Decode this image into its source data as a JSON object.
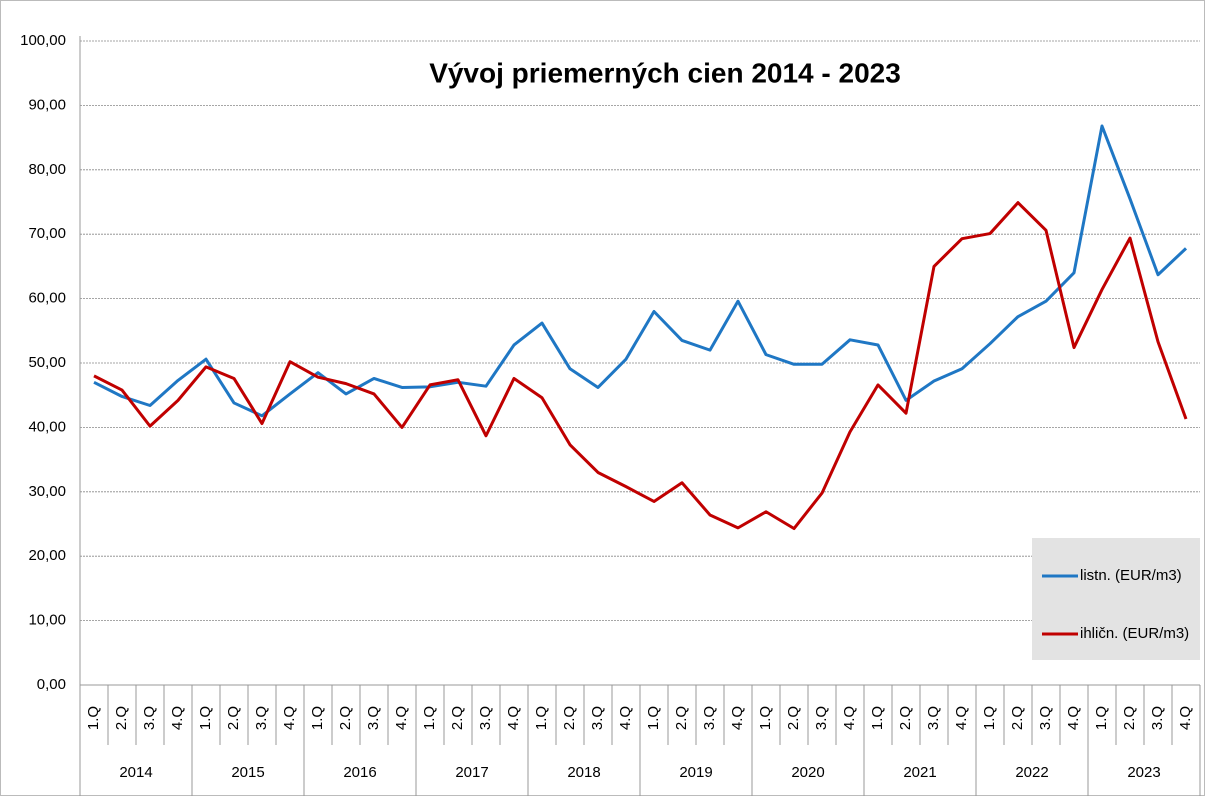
{
  "chart_data": {
    "type": "line",
    "title": "Vývoj priemerných cien 2014 - 2023",
    "categories": [
      "1.Q",
      "2.Q",
      "3.Q",
      "4.Q",
      "1.Q",
      "2.Q",
      "3.Q",
      "4.Q",
      "1.Q",
      "2.Q",
      "3.Q",
      "4.Q",
      "1.Q",
      "2.Q",
      "3.Q",
      "4.Q",
      "1.Q",
      "2.Q",
      "3.Q",
      "4.Q",
      "1.Q",
      "2.Q",
      "3.Q",
      "4.Q",
      "1.Q",
      "2.Q",
      "3.Q",
      "4.Q",
      "1.Q",
      "2.Q",
      "3.Q",
      "4.Q",
      "1.Q",
      "2.Q",
      "3.Q",
      "4.Q",
      "1.Q",
      "2.Q",
      "3.Q",
      "4.Q"
    ],
    "years": [
      "2014",
      "2015",
      "2016",
      "2017",
      "2018",
      "2019",
      "2020",
      "2021",
      "2022",
      "2023"
    ],
    "series": [
      {
        "name": "listn. (EUR/m3)",
        "color": "#1f77c4",
        "values": [
          47.0,
          44.8,
          43.4,
          47.3,
          50.6,
          43.8,
          41.8,
          45.2,
          48.5,
          45.2,
          47.6,
          46.2,
          46.3,
          47.0,
          46.4,
          52.8,
          56.2,
          49.1,
          46.2,
          50.6,
          58.0,
          53.5,
          52.0,
          59.6,
          51.3,
          49.8,
          49.8,
          53.6,
          52.8,
          44.2,
          47.2,
          49.1,
          53.0,
          57.2,
          59.6,
          64.0,
          86.8,
          75.5,
          63.7,
          67.8
        ]
      },
      {
        "name": "ihličn. (EUR/m3)",
        "color": "#c00000",
        "values": [
          48.0,
          45.8,
          40.2,
          44.2,
          49.4,
          47.6,
          40.6,
          50.2,
          47.8,
          46.8,
          45.2,
          40.0,
          46.6,
          47.4,
          38.7,
          47.6,
          44.6,
          37.3,
          33.0,
          30.8,
          28.5,
          31.4,
          26.4,
          24.4,
          26.9,
          24.3,
          29.8,
          39.3,
          46.6,
          42.2,
          65.0,
          69.3,
          70.1,
          74.9,
          70.6,
          52.4,
          61.4,
          69.4,
          53.3,
          41.3
        ]
      }
    ],
    "ylim": [
      0,
      100
    ],
    "yticks": [
      {
        "value": 0,
        "label": "0,00"
      },
      {
        "value": 10,
        "label": "10,00"
      },
      {
        "value": 20,
        "label": "20,00"
      },
      {
        "value": 30,
        "label": "30,00"
      },
      {
        "value": 40,
        "label": "40,00"
      },
      {
        "value": 50,
        "label": "50,00"
      },
      {
        "value": 60,
        "label": "60,00"
      },
      {
        "value": 70,
        "label": "70,00"
      },
      {
        "value": 80,
        "label": "80,00"
      },
      {
        "value": 90,
        "label": "90,00"
      },
      {
        "value": 100,
        "label": "100,00"
      }
    ],
    "grid": true,
    "legend": "lower right"
  }
}
